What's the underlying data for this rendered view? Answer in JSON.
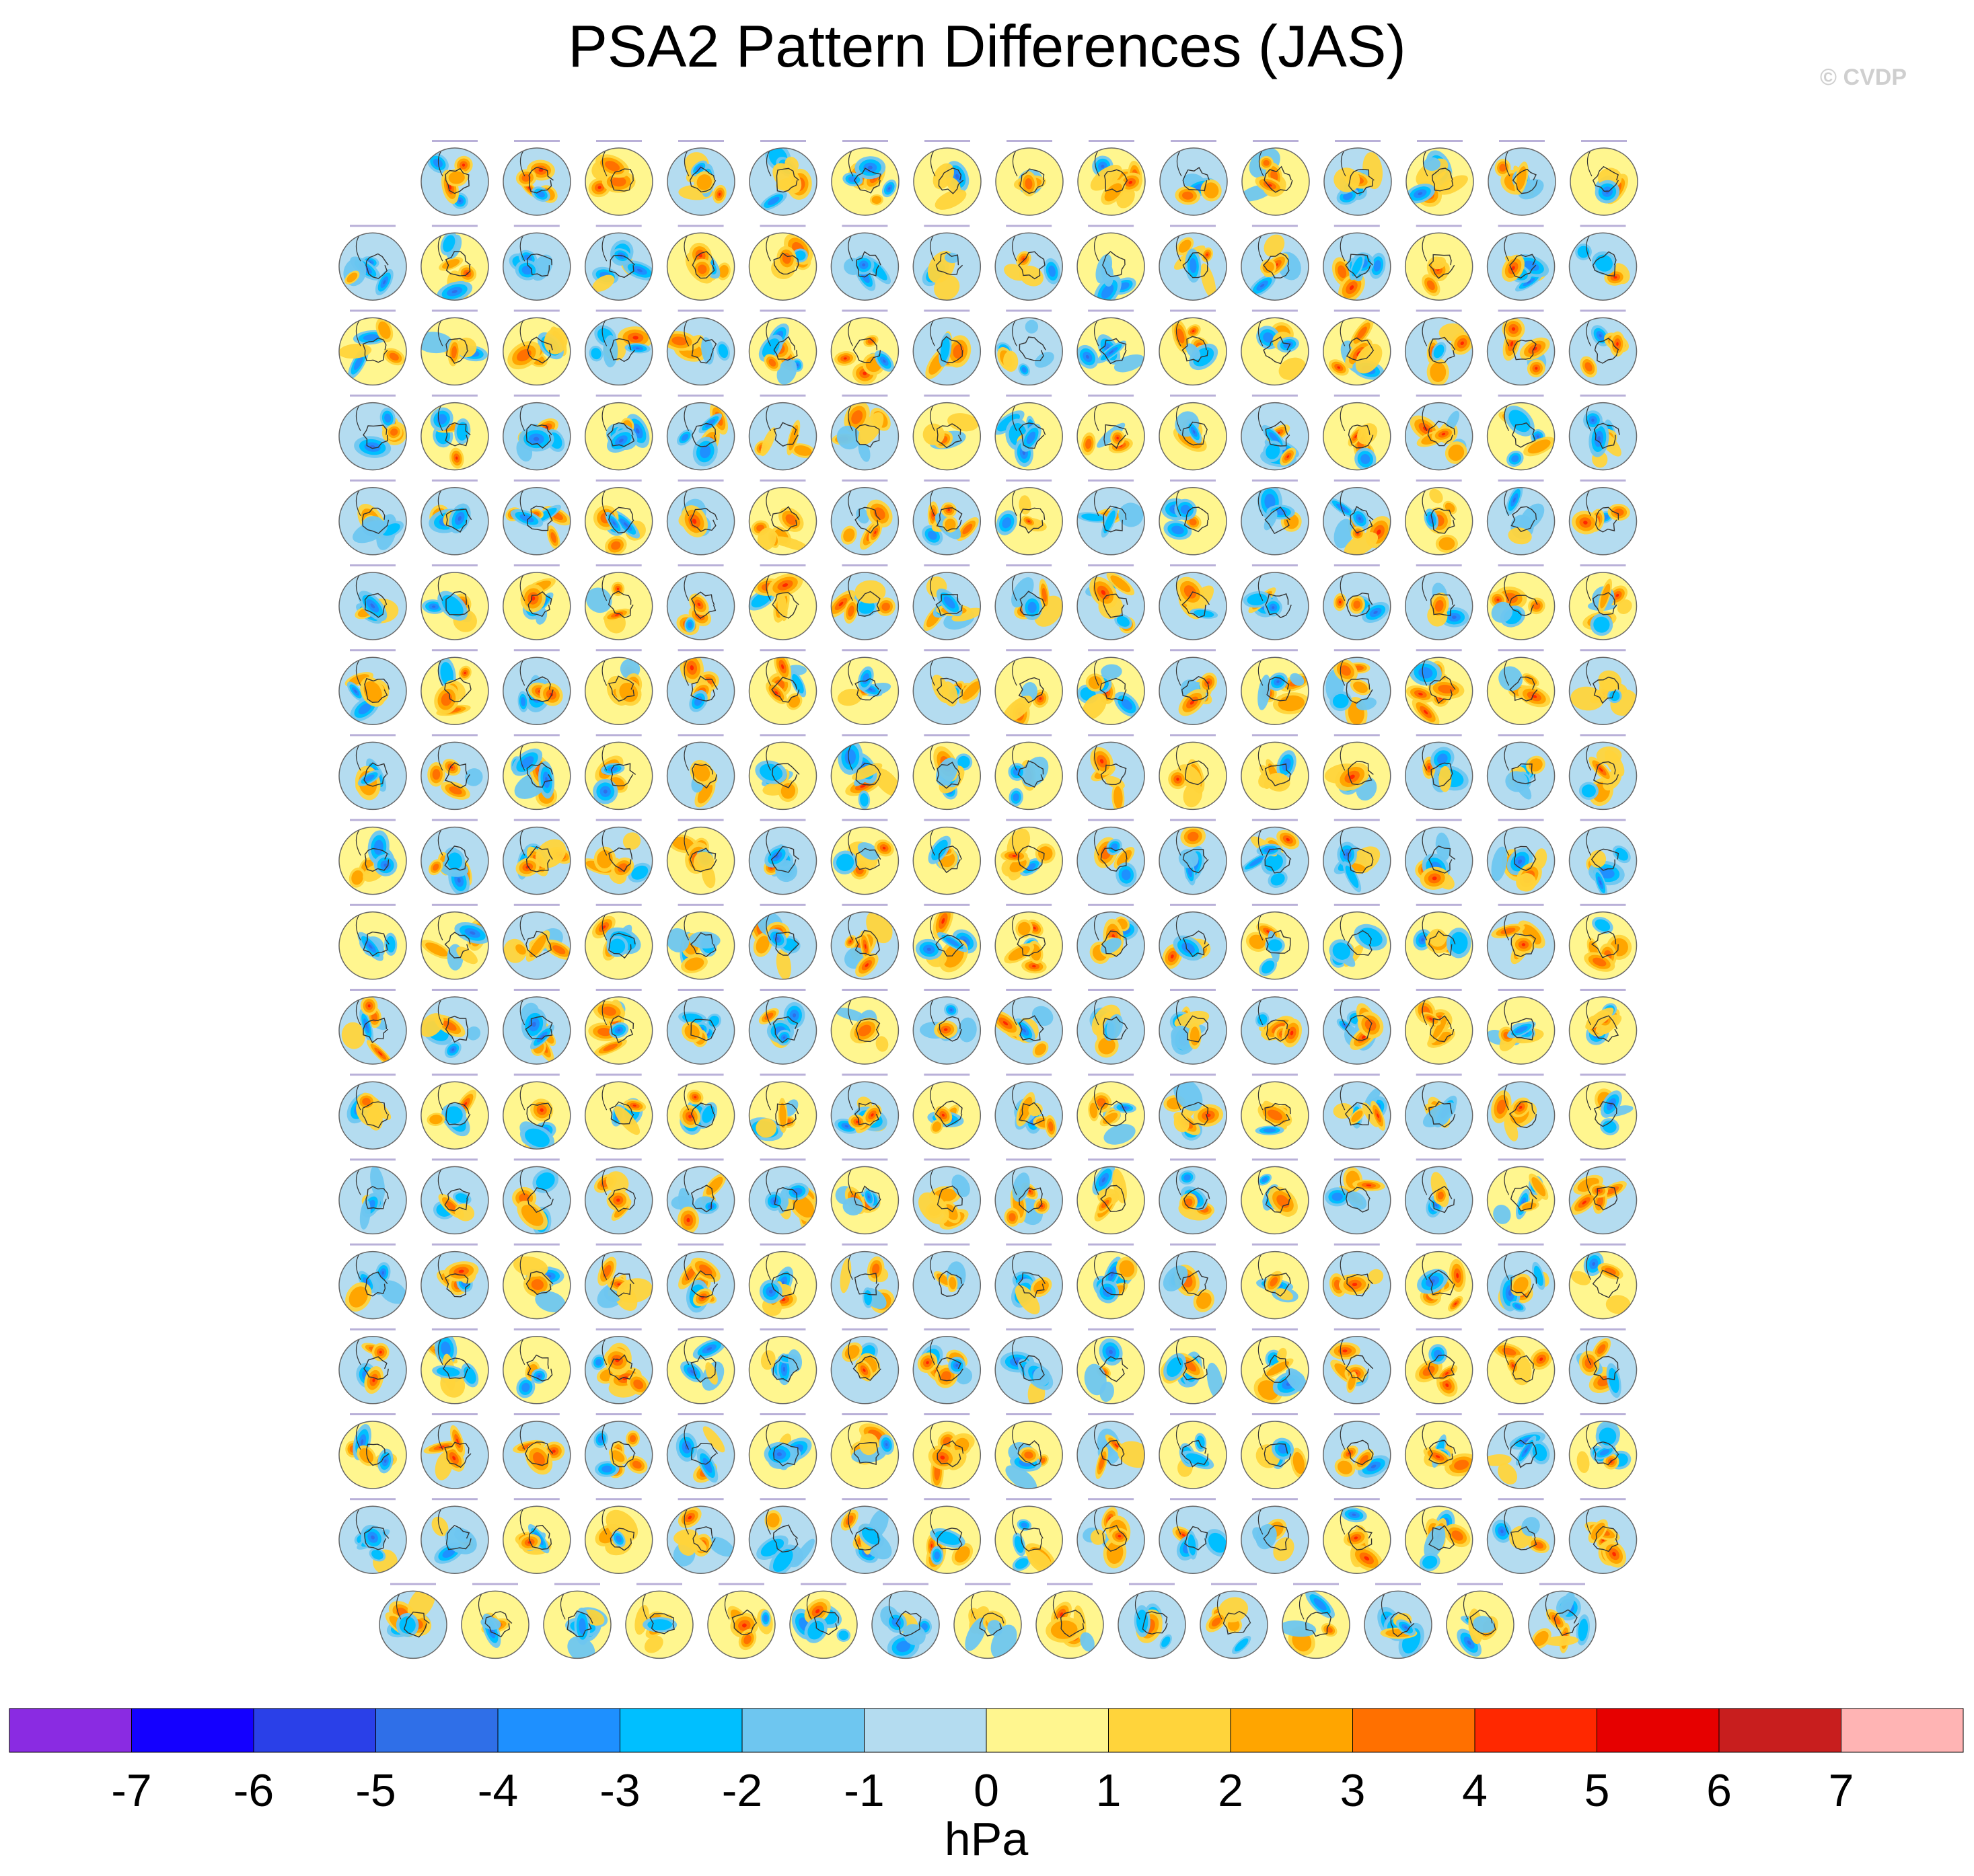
{
  "title": "PSA2 Pattern Differences (JAS)",
  "credit": "© CVDP",
  "chart_data": {
    "type": "heatmap",
    "description": "",
    "panel_rows": [
      15,
      16,
      16,
      16,
      16,
      16,
      16,
      16,
      16,
      16,
      16,
      16,
      16,
      16,
      16,
      16,
      16,
      15
    ],
    "colorbar": {
      "unit": "hPa",
      "ticks": [
        "-7",
        "-6",
        "-5",
        "-4",
        "-3",
        "-2",
        "-1",
        "0",
        "1",
        "2",
        "3",
        "4",
        "5",
        "6",
        "7"
      ],
      "colors": [
        "#8a2be2",
        "#1400ff",
        "#2a40e8",
        "#2f6fe8",
        "#1e90ff",
        "#00bfff",
        "#6ec6f0",
        "#b4dcf0",
        "#fff68f",
        "#ffd43b",
        "#ffa500",
        "#ff7000",
        "#ff2800",
        "#e60000",
        "#c81e1e",
        "#ffb4b4"
      ]
    }
  }
}
